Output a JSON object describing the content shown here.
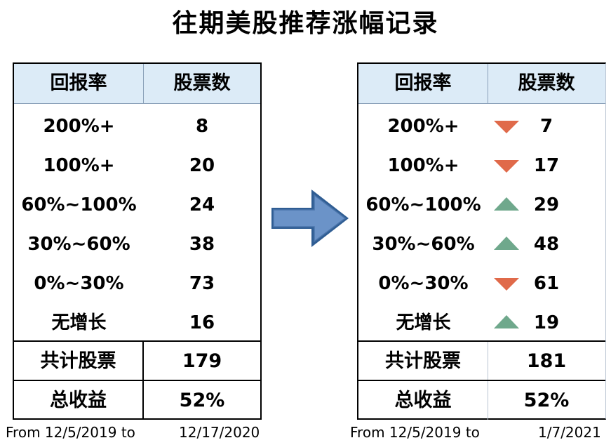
{
  "title": "往期美股推荐涨幅记录",
  "tables": [
    {
      "header": {
        "col1": "回报率",
        "col2": "股票数"
      },
      "rows": [
        {
          "range": "200%+",
          "count": "8"
        },
        {
          "range": "100%+",
          "count": "20"
        },
        {
          "range": "60%~100%",
          "count": "24"
        },
        {
          "range": "30%~60%",
          "count": "38"
        },
        {
          "range": "0%~30%",
          "count": "73"
        },
        {
          "range": "无增长",
          "count": "16"
        }
      ],
      "total_label": "共计股票",
      "total_value": "179",
      "return_label": "总收益",
      "return_value": "52%",
      "footer_from": "From 12/5/2019 to",
      "footer_to": "12/17/2020"
    },
    {
      "header": {
        "col1": "回报率",
        "col2": "股票数"
      },
      "rows": [
        {
          "range": "200%+",
          "count": "7",
          "trend": "down"
        },
        {
          "range": "100%+",
          "count": "17",
          "trend": "down"
        },
        {
          "range": "60%~100%",
          "count": "29",
          "trend": "up"
        },
        {
          "range": "30%~60%",
          "count": "48",
          "trend": "up"
        },
        {
          "range": "0%~30%",
          "count": "61",
          "trend": "down"
        },
        {
          "range": "无增长",
          "count": "19",
          "trend": "up"
        }
      ],
      "total_label": "共计股票",
      "total_value": "181",
      "return_label": "总收益",
      "return_value": "52%",
      "footer_from": "From 12/5/2019 to",
      "footer_to": "1/7/2021"
    }
  ],
  "colors": {
    "header_bg": "#dcebf7",
    "down": "#e06a4a",
    "up": "#6fa88c",
    "arrow": "#6b93c8"
  },
  "icons": {
    "arrow": "right-arrow-icon",
    "up": "triangle-up-icon",
    "down": "triangle-down-icon"
  },
  "chart_data": {
    "type": "table",
    "title": "往期美股推荐涨幅记录",
    "columns": [
      "回报率",
      "股票数"
    ],
    "categories": [
      "200%+",
      "100%+",
      "60%~100%",
      "30%~60%",
      "0%~30%",
      "无增长"
    ],
    "series": [
      {
        "values": [
          8,
          20,
          24,
          38,
          73,
          16
        ]
      },
      {
        "values": [
          7,
          17,
          29,
          48,
          61,
          19
        ]
      }
    ]
  }
}
